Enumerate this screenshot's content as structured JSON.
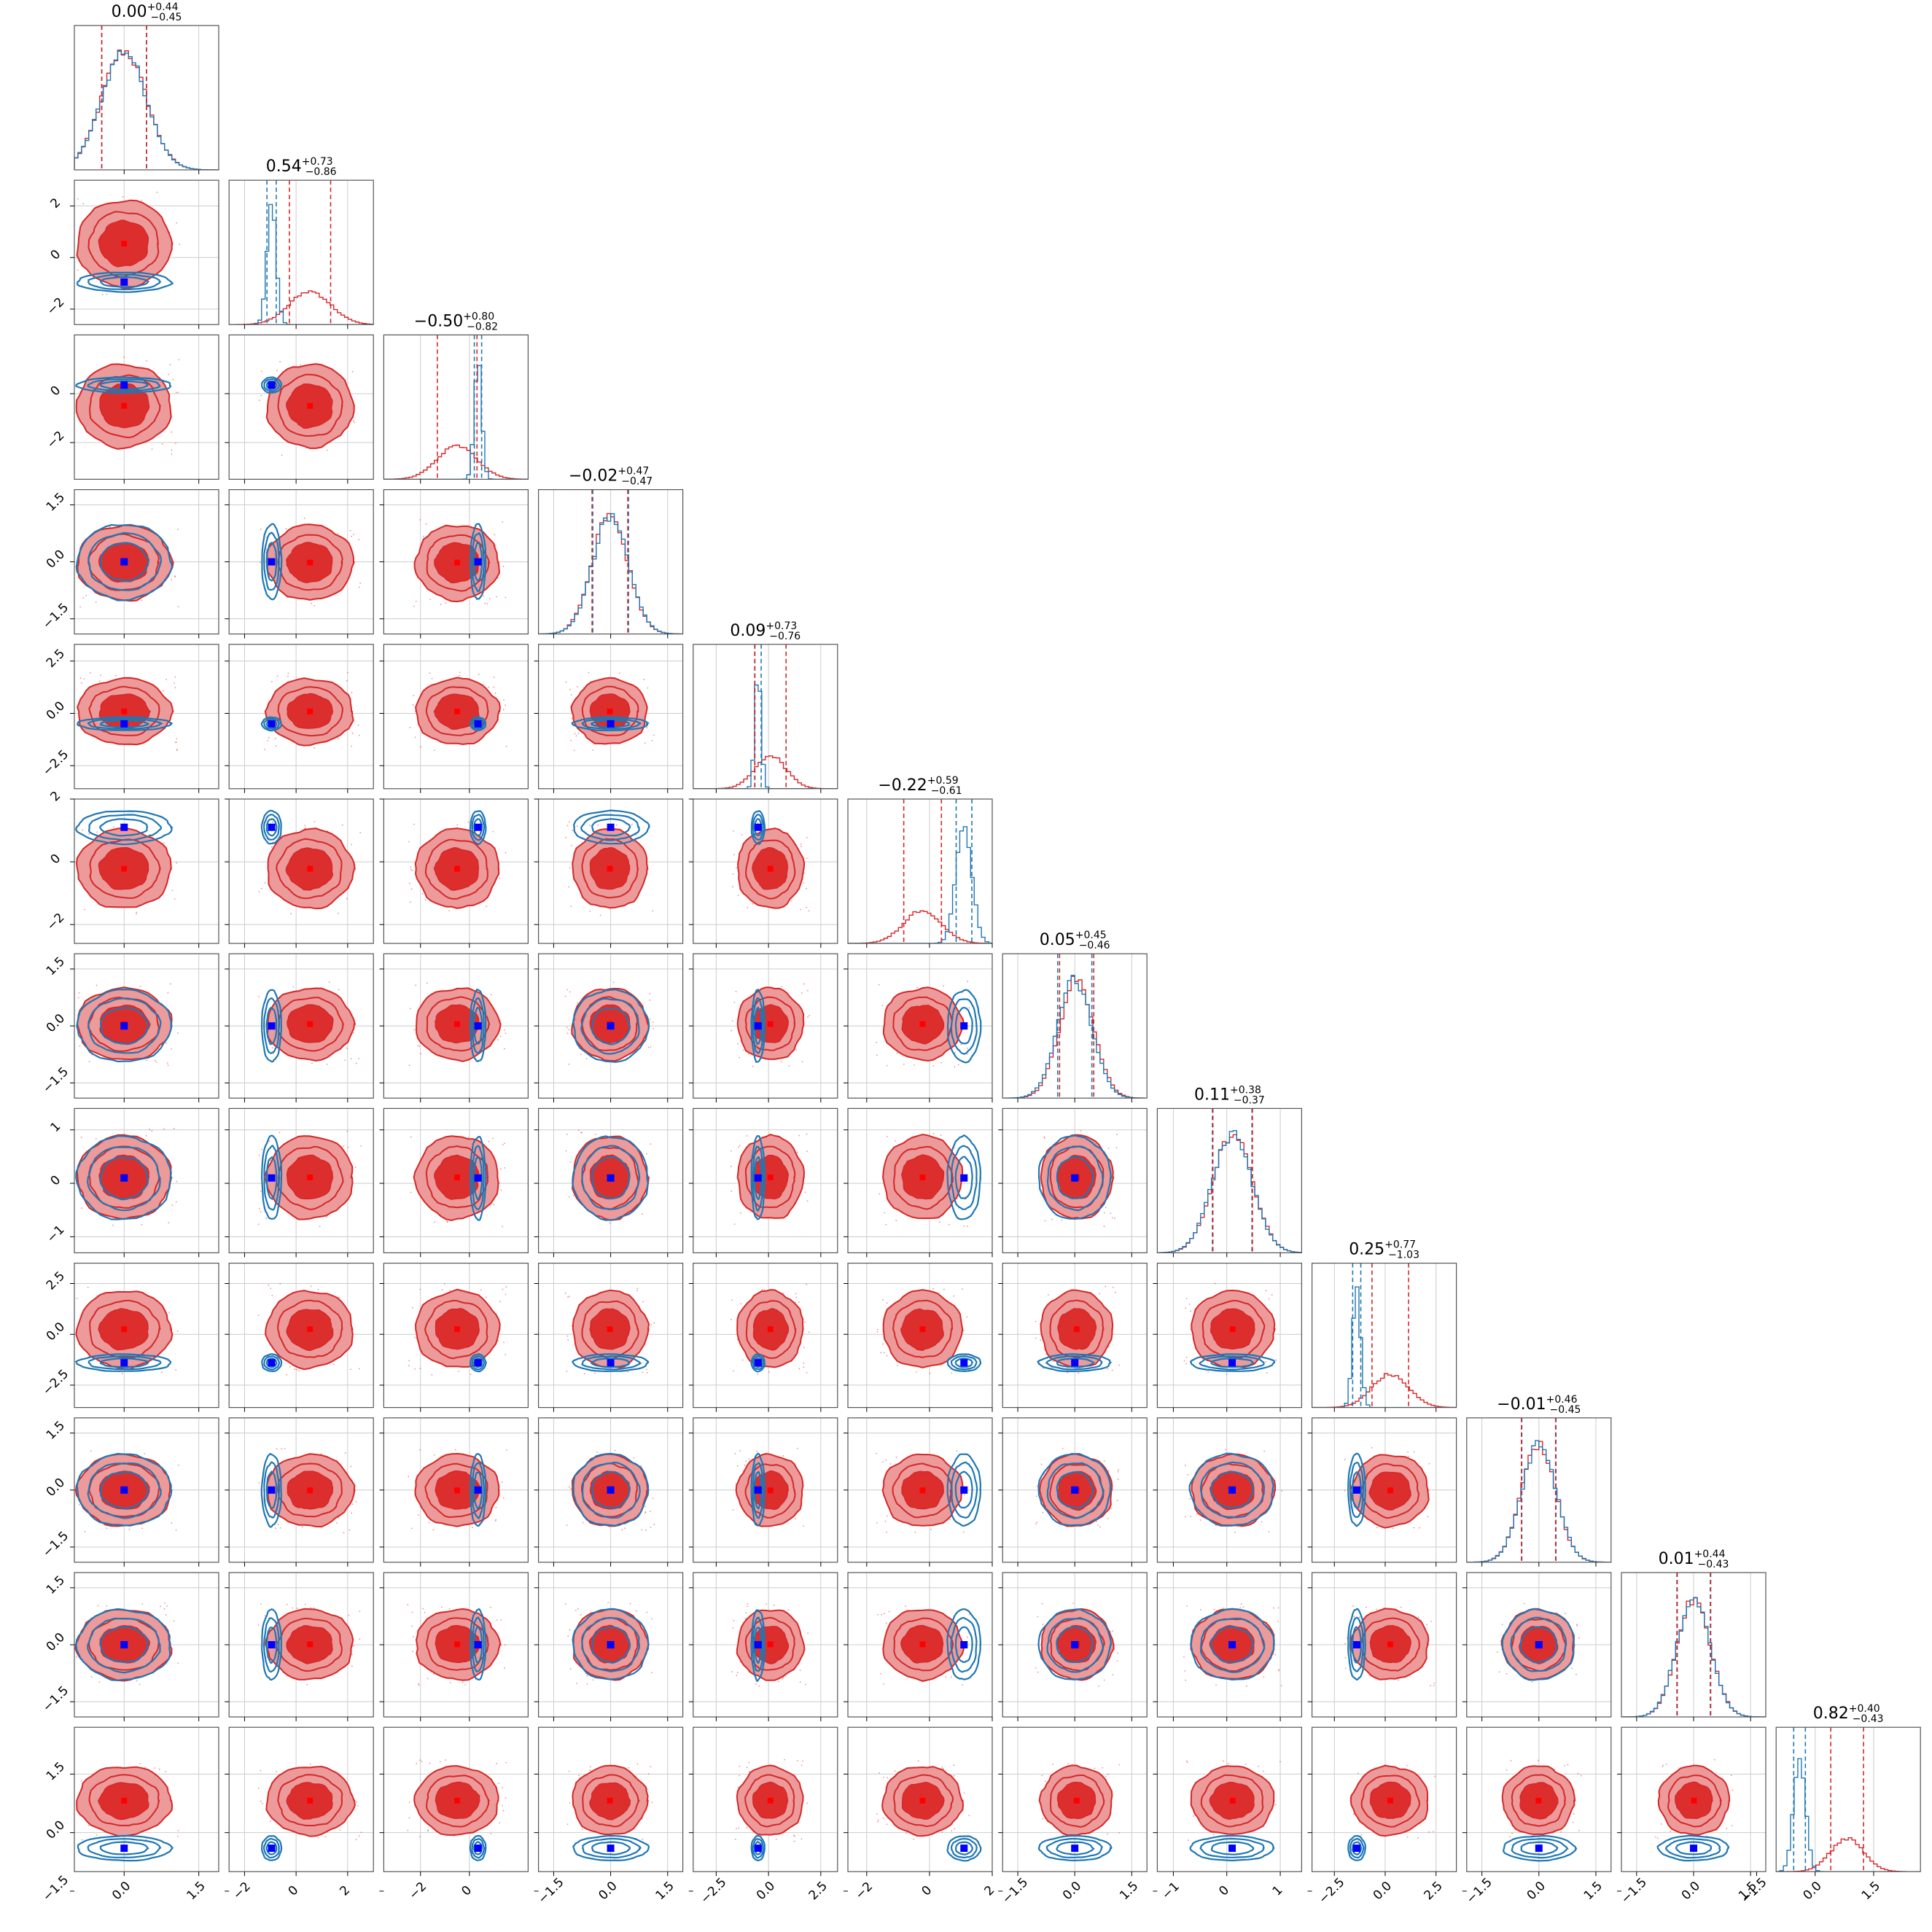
{
  "chart_data": {
    "type": "scatter",
    "subtype": "corner-plot",
    "n_params": 12,
    "grid": true,
    "legend": "none",
    "series": [
      {
        "color": "#1f77b4",
        "role": "blue posterior (contours + histograms)"
      },
      {
        "color": "#d62728",
        "role": "red posterior (filled contours + histograms)"
      }
    ],
    "params": [
      {
        "median": "0.00",
        "plus": "+0.44",
        "minus": "−0.45",
        "range": [
          -1.0,
          1.9
        ],
        "ticks": [
          0.0,
          1.5
        ],
        "tick_labels": [
          "0.0",
          "1.5"
        ],
        "blue_center": 0.0,
        "blue_width": 0.45,
        "red_center": 0.0,
        "red_width": 0.45
      },
      {
        "median": "0.54",
        "plus": "+0.73",
        "minus": "−0.86",
        "range": [
          -2.6,
          3.0
        ],
        "ticks": [
          -2,
          0,
          2
        ],
        "tick_labels": [
          "−2",
          "0",
          "2"
        ],
        "blue_center": -0.95,
        "blue_width": 0.18,
        "red_center": 0.54,
        "red_width": 0.8
      },
      {
        "median": "−0.50",
        "plus": "+0.80",
        "minus": "−0.82",
        "range": [
          -3.5,
          2.4
        ],
        "ticks": [
          -2,
          0
        ],
        "tick_labels": [
          "−2",
          "0"
        ],
        "blue_center": 0.35,
        "blue_width": 0.15,
        "red_center": -0.5,
        "red_width": 0.81
      },
      {
        "median": "−0.02",
        "plus": "+0.47",
        "minus": "−0.47",
        "range": [
          -1.9,
          1.9
        ],
        "ticks": [
          -1.5,
          0.0,
          1.5
        ],
        "tick_labels": [
          "−1.5",
          "0.0",
          "1.5"
        ],
        "blue_center": 0.0,
        "blue_width": 0.47,
        "red_center": -0.02,
        "red_width": 0.47
      },
      {
        "median": "0.09",
        "plus": "+0.73",
        "minus": "−0.76",
        "range": [
          -3.6,
          3.3
        ],
        "ticks": [
          -2.5,
          0.0,
          2.5
        ],
        "tick_labels": [
          "−2.5",
          "0.0",
          "2.5"
        ],
        "blue_center": -0.5,
        "blue_width": 0.15,
        "red_center": 0.09,
        "red_width": 0.75
      },
      {
        "median": "−0.22",
        "plus": "+0.59",
        "minus": "−0.61",
        "range": [
          -2.6,
          2.0
        ],
        "ticks": [
          -2,
          0,
          2
        ],
        "tick_labels": [
          "−2",
          "0",
          "2"
        ],
        "blue_center": 1.1,
        "blue_width": 0.25,
        "red_center": -0.22,
        "red_width": 0.6
      },
      {
        "median": "0.05",
        "plus": "+0.45",
        "minus": "−0.46",
        "range": [
          -1.9,
          1.9
        ],
        "ticks": [
          -1.5,
          0.0,
          1.5
        ],
        "tick_labels": [
          "−1.5",
          "0.0",
          "1.5"
        ],
        "blue_center": 0.0,
        "blue_width": 0.45,
        "red_center": 0.05,
        "red_width": 0.45
      },
      {
        "median": "0.11",
        "plus": "+0.38",
        "minus": "−0.37",
        "range": [
          -1.3,
          1.4
        ],
        "ticks": [
          -1,
          0,
          1
        ],
        "tick_labels": [
          "−1",
          "0",
          "1"
        ],
        "blue_center": 0.1,
        "blue_width": 0.37,
        "red_center": 0.11,
        "red_width": 0.37
      },
      {
        "median": "0.25",
        "plus": "+0.77",
        "minus": "−1.03",
        "range": [
          -3.6,
          3.5
        ],
        "ticks": [
          -2.5,
          0.0,
          2.5
        ],
        "tick_labels": [
          "−2.5",
          "0.0",
          "2.5"
        ],
        "blue_center": -1.4,
        "blue_width": 0.2,
        "red_center": 0.25,
        "red_width": 0.9
      },
      {
        "median": "−0.01",
        "plus": "+0.46",
        "minus": "−0.45",
        "range": [
          -1.9,
          1.9
        ],
        "ticks": [
          -1.5,
          0.0,
          1.5
        ],
        "tick_labels": [
          "−1.5",
          "0.0",
          "1.5"
        ],
        "blue_center": 0.0,
        "blue_width": 0.45,
        "red_center": -0.01,
        "red_width": 0.45
      },
      {
        "median": "0.01",
        "plus": "+0.44",
        "minus": "−0.43",
        "range": [
          -1.9,
          1.9
        ],
        "ticks": [
          -1.5,
          0.0,
          1.5
        ],
        "tick_labels": [
          "−1.5",
          "0.0",
          "1.5"
        ],
        "blue_center": 0.0,
        "blue_width": 0.44,
        "red_center": 0.01,
        "red_width": 0.44
      },
      {
        "median": "0.82",
        "plus": "+0.40",
        "minus": "−0.43",
        "range": [
          -1.0,
          2.7
        ],
        "ticks": [
          -1.5,
          0.0,
          1.5
        ],
        "tick_labels": [
          "−1.5",
          "0.0",
          "1.5"
        ],
        "blue_center": -0.4,
        "blue_width": 0.15,
        "red_center": 0.82,
        "red_width": 0.42
      }
    ]
  },
  "colors": {
    "blue": "#1f77b4",
    "red": "#d62728",
    "red_fill_outer": "#ec9a9a",
    "red_fill_inner": "#dd2e2e",
    "marker": "#0000ff",
    "grid": "#cccccc",
    "axes": "#555555"
  }
}
